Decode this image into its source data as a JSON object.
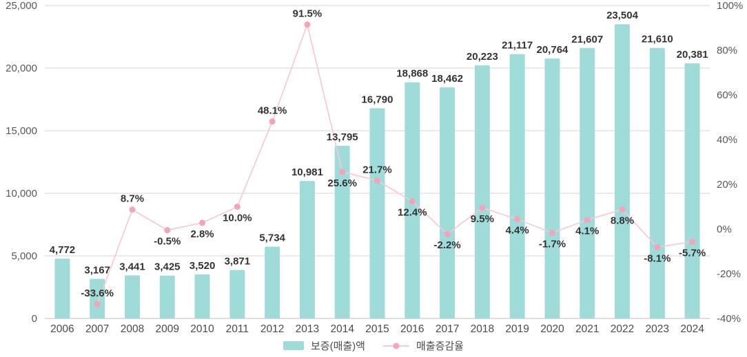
{
  "chart_data": {
    "type": "bar",
    "subtype": "combo-bar-line",
    "title": "",
    "categories": [
      "2006",
      "2007",
      "2008",
      "2009",
      "2010",
      "2011",
      "2012",
      "2013",
      "2014",
      "2015",
      "2016",
      "2017",
      "2018",
      "2019",
      "2020",
      "2021",
      "2022",
      "2023",
      "2024"
    ],
    "series": [
      {
        "name": "보증(매출)액",
        "type": "bar",
        "axis": "left",
        "values": [
          4772,
          3167,
          3441,
          3425,
          3520,
          3871,
          5734,
          10981,
          13795,
          16790,
          18868,
          18462,
          20223,
          21117,
          20764,
          21607,
          23504,
          21610,
          20381
        ],
        "labels": [
          "4,772",
          "3,167",
          "3,441",
          "3,425",
          "3,520",
          "3,871",
          "5,734",
          "10,981",
          "13,795",
          "16,790",
          "18,868",
          "18,462",
          "20,223",
          "21,117",
          "20,764",
          "21,607",
          "23,504",
          "21,610",
          "20,381"
        ]
      },
      {
        "name": "매출증감율",
        "type": "line",
        "axis": "right",
        "values": [
          null,
          -33.6,
          8.7,
          -0.5,
          2.8,
          10.0,
          48.1,
          91.5,
          25.6,
          21.7,
          12.4,
          -2.2,
          9.5,
          4.4,
          -1.7,
          4.1,
          8.8,
          -8.1,
          -5.7
        ],
        "labels": [
          null,
          "-33.6%",
          "8.7%",
          "-0.5%",
          "2.8%",
          "10.0%",
          "48.1%",
          "91.5%",
          "25.6%",
          "21.7%",
          "12.4%",
          "-2.2%",
          "9.5%",
          "4.4%",
          "-1.7%",
          "4.1%",
          "8.8%",
          "-8.1%",
          "-5.7%"
        ],
        "label_position": [
          null,
          "above",
          "above",
          "below",
          "below",
          "below",
          "above",
          "above",
          "below",
          "above",
          "below",
          "below",
          "below",
          "below",
          "below",
          "below",
          "below",
          "below",
          "below"
        ]
      }
    ],
    "left_axis": {
      "min": 0,
      "max": 25000,
      "ticks": [
        "0",
        "5,000",
        "10,000",
        "15,000",
        "20,000",
        "25,000"
      ]
    },
    "right_axis": {
      "min": -40,
      "max": 100,
      "ticks": [
        "-40%",
        "-20%",
        "0%",
        "20%",
        "40%",
        "60%",
        "80%",
        "100%"
      ]
    },
    "grid": true,
    "legend_position": "bottom"
  },
  "legend": {
    "bar_label": "보증(매출)액",
    "line_label": "매출증감율"
  },
  "colors": {
    "bar": "#9fdbd8",
    "line": "#f8c9d4",
    "dot": "#f2a4b9",
    "grid": "#d6d6d6",
    "axis_line": "#bdbdbd",
    "background": "#ffffff"
  }
}
